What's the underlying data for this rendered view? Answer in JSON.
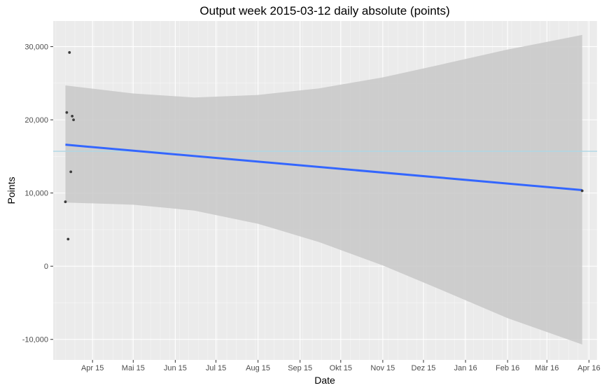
{
  "chart_data": {
    "type": "scatter",
    "title": "Output week 2015-03-12 daily absolute (points)",
    "xlabel": "Date",
    "ylabel": "Points",
    "x_ticks": [
      "Apr 15",
      "Mai 15",
      "Jun 15",
      "Jul 15",
      "Aug 15",
      "Sep 15",
      "Okt 15",
      "Nov 15",
      "Dez 15",
      "Jan 16",
      "Feb 16",
      "Mär 16",
      "Apr 16"
    ],
    "y_ticks": [
      "-10,000",
      "0",
      "10,000",
      "20,000",
      "30,000"
    ],
    "xlim": [
      "2015-03-03",
      "2016-04-07"
    ],
    "ylim": [
      -12800,
      33500
    ],
    "grid": true,
    "points": [
      {
        "x": "2015-03-12",
        "y": 8800
      },
      {
        "x": "2015-03-13",
        "y": 21000
      },
      {
        "x": "2015-03-14",
        "y": 3700
      },
      {
        "x": "2015-03-15",
        "y": 29200
      },
      {
        "x": "2015-03-16",
        "y": 12900
      },
      {
        "x": "2015-03-17",
        "y": 20500
      },
      {
        "x": "2015-03-18",
        "y": 20000
      },
      {
        "x": "2016-03-27",
        "y": 10300
      }
    ],
    "trend_line": {
      "start": {
        "x": "2015-03-12",
        "y": 16600
      },
      "end": {
        "x": "2016-03-27",
        "y": 10400
      },
      "color": "#3366ff"
    },
    "confidence_band": [
      {
        "x": "2015-03-12",
        "upper": 24700,
        "lower": 8700
      },
      {
        "x": "2015-05-01",
        "upper": 23600,
        "lower": 8400
      },
      {
        "x": "2015-06-15",
        "upper": 23050,
        "lower": 7600
      },
      {
        "x": "2015-08-01",
        "upper": 23400,
        "lower": 5800
      },
      {
        "x": "2015-09-15",
        "upper": 24300,
        "lower": 3300
      },
      {
        "x": "2015-11-01",
        "upper": 25800,
        "lower": 100
      },
      {
        "x": "2015-12-15",
        "upper": 27600,
        "lower": -3300
      },
      {
        "x": "2016-02-01",
        "upper": 29600,
        "lower": -7100
      },
      {
        "x": "2016-03-27",
        "upper": 31600,
        "lower": -10700
      }
    ],
    "reference_line": {
      "y": 15700,
      "color": "#add8e6"
    },
    "colors": {
      "panel": "#ebebeb",
      "grid": "#ffffff",
      "band": "#c8c8c8",
      "point": "#3d3d3d"
    }
  }
}
